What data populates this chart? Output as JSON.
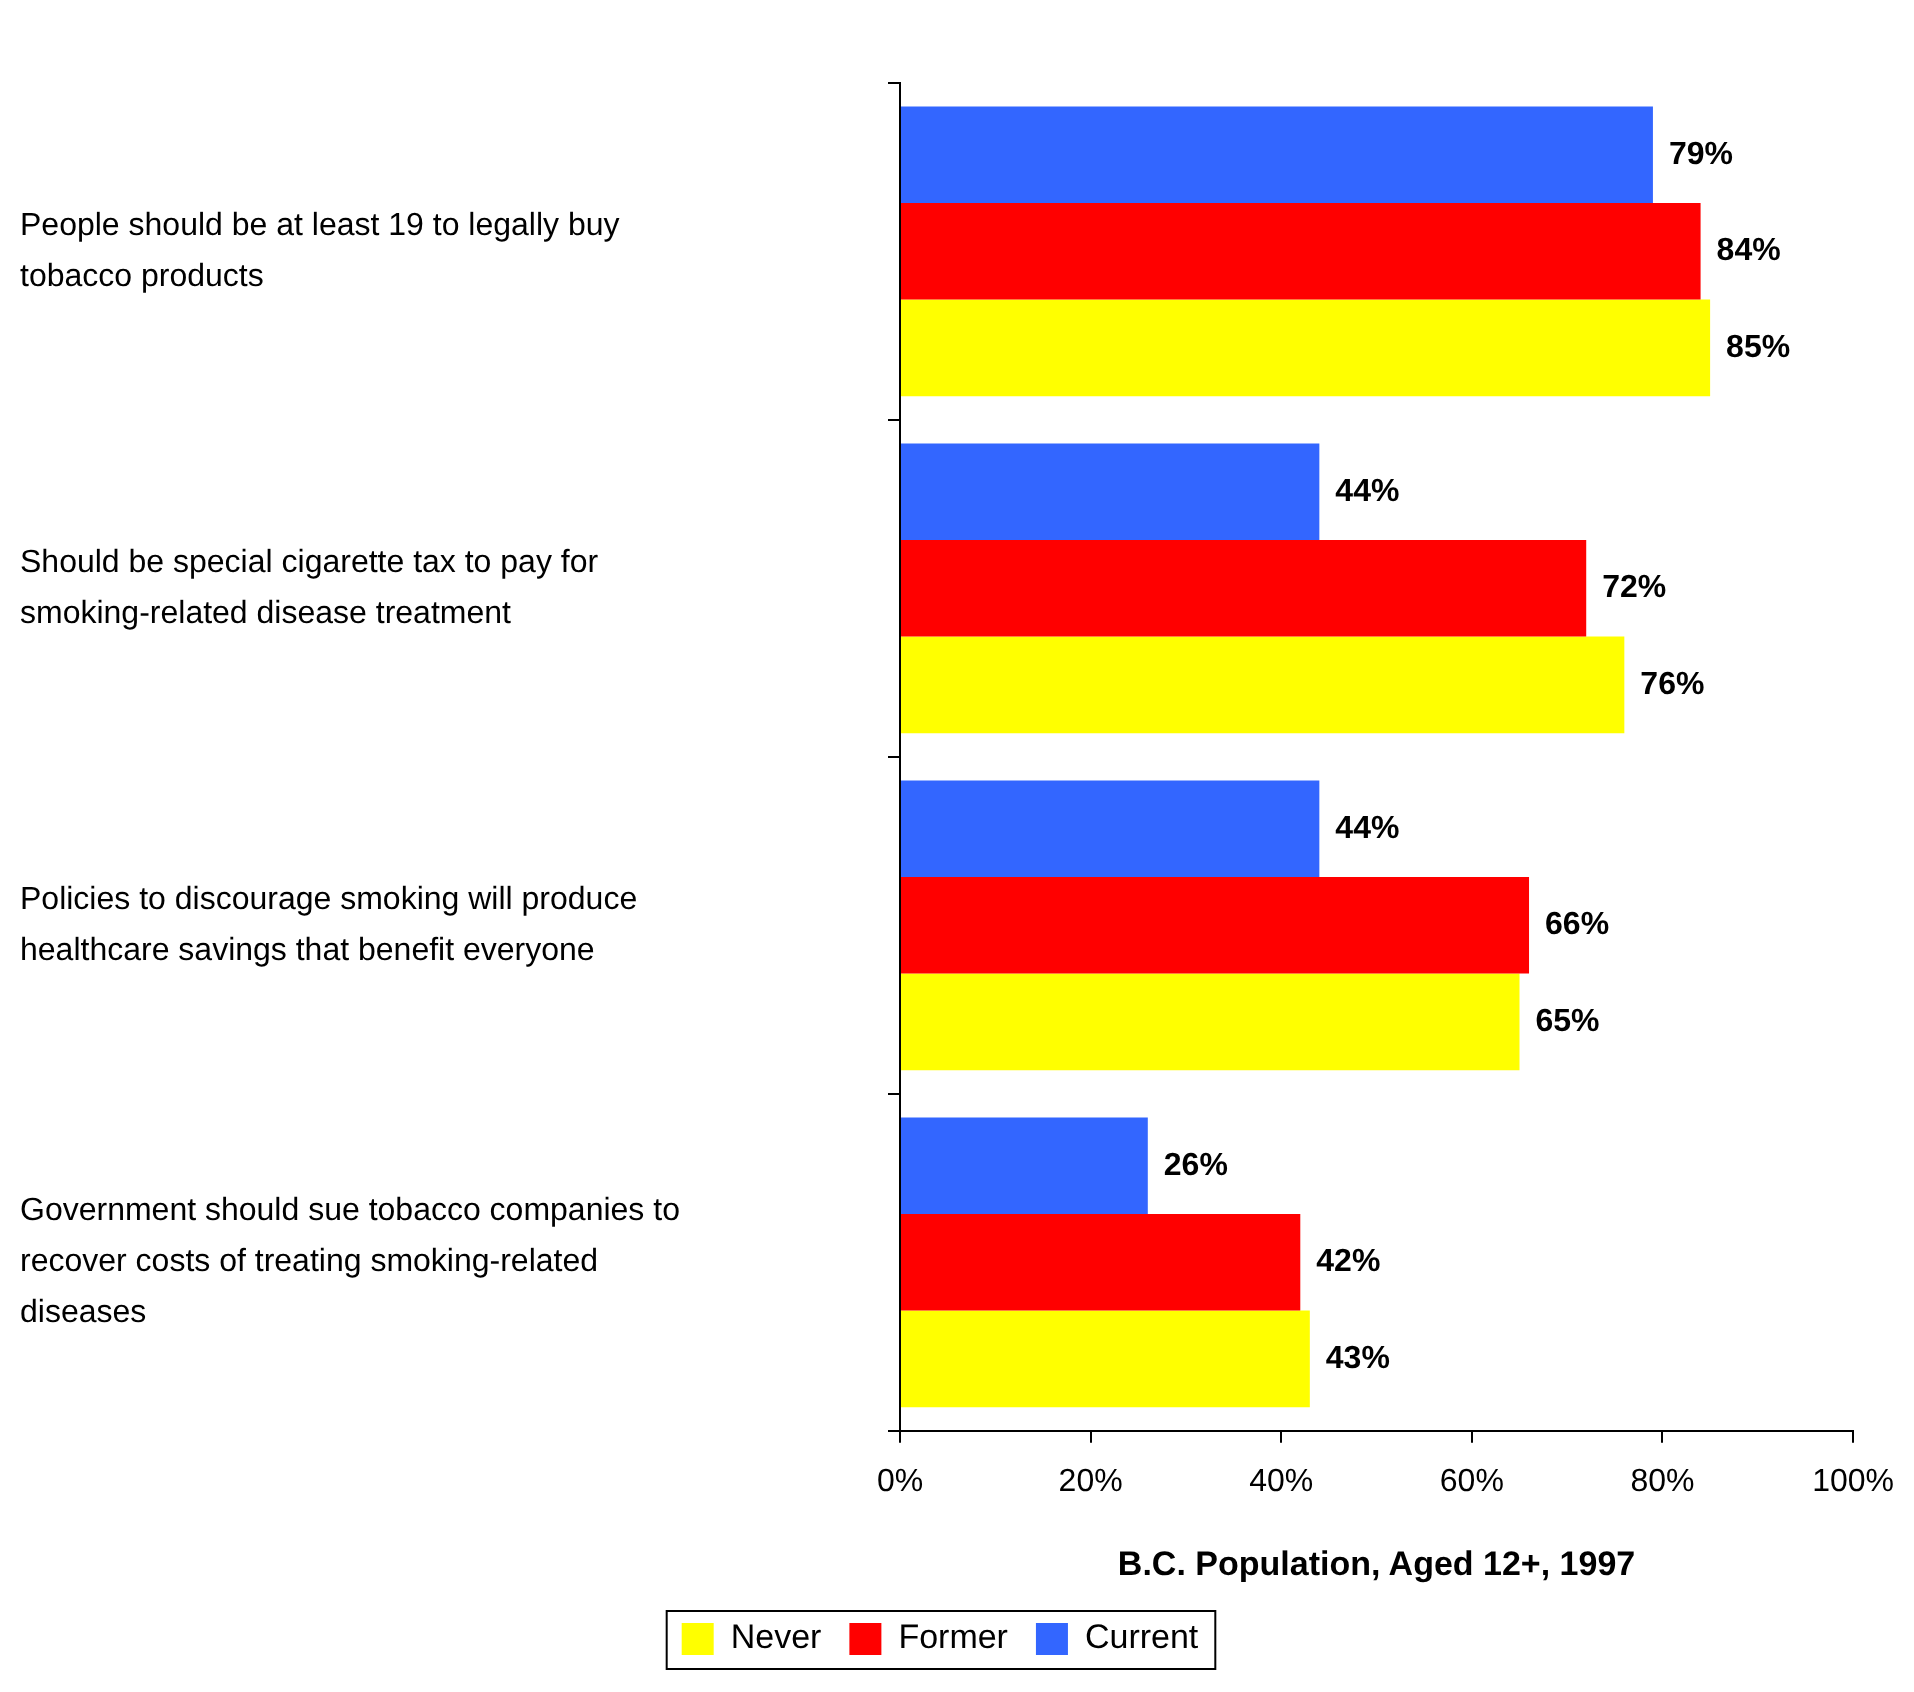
{
  "chart_data": {
    "type": "bar",
    "orientation": "horizontal",
    "xlabel": "B.C. Population, Aged 12+, 1997",
    "categories": [
      "People should be at least 19 to legally buy tobacco products",
      "Should be special cigarette tax to pay for smoking-related disease treatment",
      "Policies to discourage smoking will produce healthcare savings that benefit everyone",
      "Government should sue tobacco companies to recover costs of treating smoking-related diseases"
    ],
    "series": [
      {
        "name": "Current",
        "color": "#3366ff",
        "values": [
          79,
          44,
          44,
          26
        ],
        "value_labels": [
          "79%",
          "44%",
          "44%",
          "26%"
        ]
      },
      {
        "name": "Former",
        "color": "#ff0000",
        "values": [
          84,
          72,
          66,
          42
        ],
        "value_labels": [
          "84%",
          "72%",
          "66%",
          "42%"
        ]
      },
      {
        "name": "Never",
        "color": "#ffff00",
        "values": [
          85,
          76,
          65,
          43
        ],
        "value_labels": [
          "85%",
          "76%",
          "65%",
          "43%"
        ]
      }
    ],
    "xlim": [
      0,
      100
    ],
    "xticks": [
      {
        "value": 0,
        "label": "0%"
      },
      {
        "value": 20,
        "label": "20%"
      },
      {
        "value": 40,
        "label": "40%"
      },
      {
        "value": 60,
        "label": "60%"
      },
      {
        "value": 80,
        "label": "80%"
      },
      {
        "value": 100,
        "label": "100%"
      }
    ],
    "grid": false,
    "legend": "bottom"
  }
}
